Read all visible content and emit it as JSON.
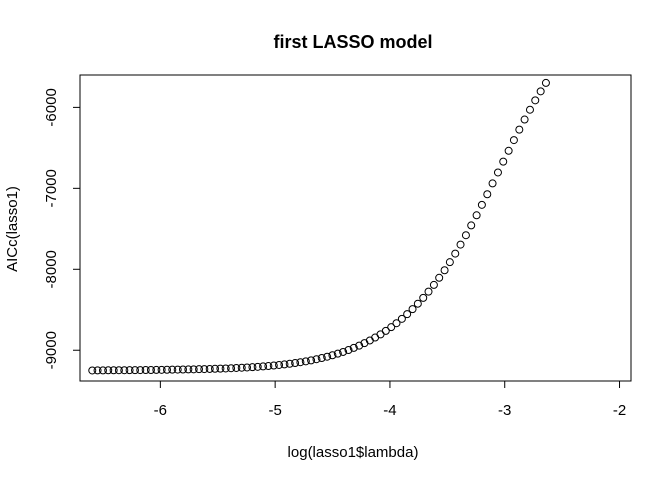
{
  "chart_data": {
    "type": "scatter",
    "title": "first LASSO model",
    "xlabel": "log(lasso1$lambda)",
    "ylabel": "AICc(lasso1)",
    "xlim": [
      -6.7,
      -1.9
    ],
    "ylim": [
      -9380,
      -5600
    ],
    "xticks": [
      -6,
      -5,
      -4,
      -3,
      -2
    ],
    "yticks": [
      -9000,
      -8000,
      -7000,
      -6000
    ],
    "grid": false,
    "legend": "none",
    "marker": "open-circle",
    "points": [
      [
        -6.593,
        -9250
      ],
      [
        -6.547,
        -9249
      ],
      [
        -6.5,
        -9249
      ],
      [
        -6.454,
        -9248
      ],
      [
        -6.407,
        -9248
      ],
      [
        -6.361,
        -9247
      ],
      [
        -6.314,
        -9247
      ],
      [
        -6.268,
        -9246
      ],
      [
        -6.221,
        -9246
      ],
      [
        -6.175,
        -9245
      ],
      [
        -6.128,
        -9244
      ],
      [
        -6.082,
        -9244
      ],
      [
        -6.035,
        -9243
      ],
      [
        -5.989,
        -9242
      ],
      [
        -5.942,
        -9241
      ],
      [
        -5.896,
        -9240
      ],
      [
        -5.849,
        -9239
      ],
      [
        -5.803,
        -9238
      ],
      [
        -5.756,
        -9237
      ],
      [
        -5.71,
        -9236
      ],
      [
        -5.663,
        -9234
      ],
      [
        -5.617,
        -9233
      ],
      [
        -5.57,
        -9231
      ],
      [
        -5.524,
        -9229
      ],
      [
        -5.477,
        -9227
      ],
      [
        -5.431,
        -9225
      ],
      [
        -5.384,
        -9222
      ],
      [
        -5.338,
        -9219
      ],
      [
        -5.291,
        -9216
      ],
      [
        -5.245,
        -9213
      ],
      [
        -5.198,
        -9209
      ],
      [
        -5.152,
        -9205
      ],
      [
        -5.105,
        -9200
      ],
      [
        -5.059,
        -9195
      ],
      [
        -5.012,
        -9189
      ],
      [
        -4.966,
        -9182
      ],
      [
        -4.919,
        -9175
      ],
      [
        -4.873,
        -9167
      ],
      [
        -4.826,
        -9158
      ],
      [
        -4.78,
        -9148
      ],
      [
        -4.733,
        -9137
      ],
      [
        -4.687,
        -9125
      ],
      [
        -4.64,
        -9111
      ],
      [
        -4.594,
        -9096
      ],
      [
        -4.547,
        -9080
      ],
      [
        -4.501,
        -9062
      ],
      [
        -4.454,
        -9042
      ],
      [
        -4.408,
        -9021
      ],
      [
        -4.361,
        -8997
      ],
      [
        -4.315,
        -8971
      ],
      [
        -4.268,
        -8943
      ],
      [
        -4.222,
        -8912
      ],
      [
        -4.175,
        -8879
      ],
      [
        -4.129,
        -8843
      ],
      [
        -4.082,
        -8804
      ],
      [
        -4.036,
        -8761
      ],
      [
        -3.989,
        -8715
      ],
      [
        -3.943,
        -8666
      ],
      [
        -3.896,
        -8612
      ],
      [
        -3.85,
        -8554
      ],
      [
        -3.803,
        -8492
      ],
      [
        -3.757,
        -8425
      ],
      [
        -3.71,
        -8353
      ],
      [
        -3.664,
        -8276
      ],
      [
        -3.617,
        -8193
      ],
      [
        -3.571,
        -8105
      ],
      [
        -3.524,
        -8012
      ],
      [
        -3.478,
        -7912
      ],
      [
        -3.431,
        -7806
      ],
      [
        -3.385,
        -7695
      ],
      [
        -3.338,
        -7579
      ],
      [
        -3.292,
        -7458
      ],
      [
        -3.245,
        -7333
      ],
      [
        -3.199,
        -7204
      ],
      [
        -3.152,
        -7073
      ],
      [
        -3.106,
        -6939
      ],
      [
        -3.059,
        -6804
      ],
      [
        -3.013,
        -6670
      ],
      [
        -2.966,
        -6536
      ],
      [
        -2.92,
        -6404
      ],
      [
        -2.873,
        -6275
      ],
      [
        -2.827,
        -6150
      ],
      [
        -2.78,
        -6029
      ],
      [
        -2.734,
        -5913
      ],
      [
        -2.687,
        -5802
      ],
      [
        -2.641,
        -5698
      ]
    ]
  }
}
